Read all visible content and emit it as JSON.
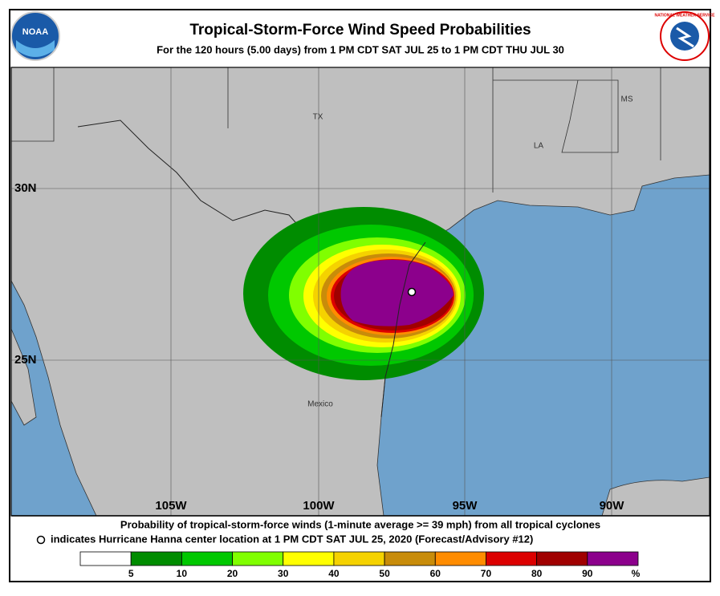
{
  "header": {
    "title": "Tropical-Storm-Force Wind Speed Probabilities",
    "subtitle": "For the 120 hours (5.00 days) from 1 PM CDT SAT JUL 25 to 1 PM CDT THU JUL 30",
    "left_logo": "NOAA",
    "right_logo": "NATIONAL WEATHER SERVICE"
  },
  "map": {
    "lat_labels": [
      "30N",
      "25N"
    ],
    "lon_labels": [
      "105W",
      "100W",
      "95W",
      "90W"
    ],
    "place_labels": [
      "TX",
      "LA",
      "MS",
      "Mexico"
    ]
  },
  "caption": {
    "line1": "Probability of tropical-storm-force winds (1-minute average >= 39 mph) from all tropical cyclones",
    "line2": "indicates Hurricane Hanna center location at 1 PM CDT SAT JUL 25, 2020 (Forecast/Advisory #12)"
  },
  "legend": {
    "colors": [
      "#ffffff",
      "#008c00",
      "#00c800",
      "#80ff00",
      "#ffff00",
      "#f5d200",
      "#c88c0a",
      "#ff8c00",
      "#dc0000",
      "#a00000",
      "#8c008c"
    ],
    "labels": [
      5,
      10,
      20,
      30,
      40,
      50,
      60,
      70,
      80,
      90
    ],
    "unit": "%"
  }
}
